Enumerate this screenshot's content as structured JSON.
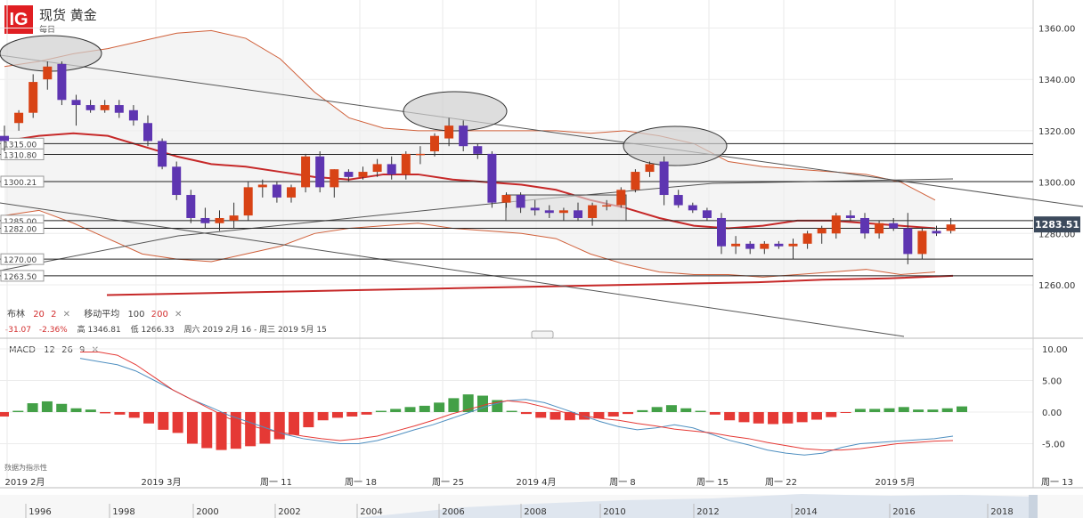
{
  "header": {
    "logo": "IG",
    "title": "现货 黄金",
    "period": "每日"
  },
  "indicators": {
    "boll_label": "布林",
    "boll_p1": "20",
    "boll_p2": "2",
    "ma_label": "移动平均",
    "ma_p1": "100",
    "ma_p2": "200",
    "close_icon": "close-icon"
  },
  "stats": {
    "change": "-31.07",
    "change_pct": "-2.36%",
    "high": "高 1346.81",
    "low": "低 1266.33",
    "range": "周六 2019 2月 16 - 周三 2019 5月 15"
  },
  "macd": {
    "label": "MACD",
    "p1": "12",
    "p2": "26",
    "p3": "9"
  },
  "footer_note": "数据为指示性",
  "colors": {
    "up": "#d84315",
    "down": "#5e35b1",
    "hist_up": "#43a047",
    "hist_down": "#e53935",
    "ma": "#c62828",
    "boll": "#d0603a",
    "macd": "#e53935",
    "signal": "#4f8fc0"
  },
  "chart_data": [
    {
      "type": "candlestick",
      "title": "现货 黄金",
      "ylim": [
        1250,
        1366
      ],
      "yticks": [
        "1360.00",
        "1340.00",
        "1320.00",
        "1300.00",
        "1280.00",
        "1260.00"
      ],
      "xticks": [
        "2019 2月",
        "2019 3月",
        "周一 11",
        "周一 18",
        "周一 25",
        "2019 4月",
        "周一 8",
        "周一 15",
        "周一 22",
        "2019 5月",
        "周一 13"
      ],
      "current_price": "1283.51",
      "levels": [
        {
          "label": "1315.00",
          "value": 1315.0
        },
        {
          "label": "1310.80",
          "value": 1310.8
        },
        {
          "label": "1300.21",
          "value": 1300.21
        },
        {
          "label": "1285.00",
          "value": 1285.0
        },
        {
          "label": "1282.00",
          "value": 1282.0
        },
        {
          "label": "1270.00",
          "value": 1270.0
        },
        {
          "label": "1263.50",
          "value": 1263.5
        }
      ],
      "candles": [
        [
          1318,
          1322,
          1312,
          1316
        ],
        [
          1323,
          1328,
          1320,
          1327
        ],
        [
          1327,
          1342,
          1325,
          1339
        ],
        [
          1340,
          1347,
          1336,
          1345
        ],
        [
          1346,
          1347,
          1330,
          1332
        ],
        [
          1332,
          1334,
          1322,
          1330
        ],
        [
          1330,
          1332,
          1327,
          1328
        ],
        [
          1328,
          1332,
          1327,
          1330
        ],
        [
          1330,
          1332,
          1325,
          1327
        ],
        [
          1328,
          1330,
          1322,
          1324
        ],
        [
          1323,
          1326,
          1314,
          1316
        ],
        [
          1316,
          1317,
          1305,
          1306
        ],
        [
          1306,
          1308,
          1293,
          1295
        ],
        [
          1295,
          1297,
          1284,
          1286
        ],
        [
          1286,
          1290,
          1282,
          1284
        ],
        [
          1284,
          1289,
          1281,
          1286
        ],
        [
          1285,
          1292,
          1282,
          1287
        ],
        [
          1287,
          1300,
          1285,
          1298
        ],
        [
          1298,
          1301,
          1294,
          1299
        ],
        [
          1299,
          1300,
          1292,
          1294
        ],
        [
          1294,
          1299,
          1292,
          1298
        ],
        [
          1298,
          1311,
          1296,
          1310
        ],
        [
          1310,
          1312,
          1296,
          1298
        ],
        [
          1298,
          1305,
          1294,
          1305
        ],
        [
          1304,
          1305,
          1300,
          1302
        ],
        [
          1302,
          1306,
          1301,
          1304
        ],
        [
          1304,
          1309,
          1302,
          1307
        ],
        [
          1307,
          1310,
          1301,
          1303
        ],
        [
          1303,
          1312,
          1301,
          1311
        ],
        [
          1311,
          1314,
          1307,
          1311
        ],
        [
          1312,
          1319,
          1310,
          1318
        ],
        [
          1317,
          1325,
          1314,
          1322
        ],
        [
          1322,
          1324,
          1312,
          1314
        ],
        [
          1314,
          1315,
          1309,
          1311
        ],
        [
          1311,
          1312,
          1290,
          1292
        ],
        [
          1292,
          1296,
          1290,
          1295
        ],
        [
          1295,
          1296,
          1288,
          1290
        ],
        [
          1290,
          1293,
          1287,
          1289
        ],
        [
          1289,
          1291,
          1286,
          1288
        ],
        [
          1288,
          1290,
          1285,
          1289
        ],
        [
          1289,
          1292,
          1285,
          1286
        ],
        [
          1286,
          1292,
          1283,
          1291
        ],
        [
          1291,
          1293,
          1289,
          1291
        ],
        [
          1291,
          1298,
          1290,
          1297
        ],
        [
          1297,
          1305,
          1296,
          1304
        ],
        [
          1304,
          1308,
          1302,
          1307
        ],
        [
          1308,
          1310,
          1291,
          1295
        ],
        [
          1295,
          1297,
          1290,
          1291
        ],
        [
          1291,
          1292,
          1288,
          1289
        ],
        [
          1289,
          1290,
          1285,
          1286
        ],
        [
          1286,
          1288,
          1272,
          1275
        ],
        [
          1275,
          1279,
          1272,
          1276
        ],
        [
          1276,
          1277,
          1272,
          1274
        ],
        [
          1274,
          1277,
          1272,
          1276
        ],
        [
          1276,
          1277,
          1274,
          1275
        ],
        [
          1275,
          1278,
          1270,
          1276
        ],
        [
          1276,
          1281,
          1274,
          1280
        ],
        [
          1280,
          1283,
          1276,
          1282
        ],
        [
          1280,
          1288,
          1278,
          1287
        ],
        [
          1287,
          1289,
          1285,
          1286
        ],
        [
          1286,
          1288,
          1278,
          1280
        ],
        [
          1280,
          1285,
          1278,
          1284
        ],
        [
          1284,
          1286,
          1281,
          1282
        ],
        [
          1282,
          1288,
          1268,
          1272
        ],
        [
          1272,
          1282,
          1270,
          1281
        ],
        [
          1281,
          1283,
          1279,
          1280
        ],
        [
          1281,
          1286,
          1280,
          1283.5
        ]
      ],
      "ma": [
        1256,
        1256.5,
        1257,
        1257.5,
        1258,
        1258.5,
        1259,
        1259.5,
        1260,
        1260.5,
        1261,
        1262,
        1262.5,
        1263.5
      ],
      "boll_upper": [
        1345,
        1347,
        1350,
        1352,
        1355,
        1358,
        1359,
        1356,
        1348,
        1335,
        1325,
        1321,
        1320,
        1320,
        1320,
        1320,
        1320,
        1319,
        1320,
        1318,
        1315,
        1308,
        1306,
        1305,
        1304,
        1303,
        1300,
        1293
      ],
      "boll_mid": [
        1316,
        1318,
        1319,
        1318,
        1314,
        1310,
        1307,
        1306,
        1304,
        1302,
        1301,
        1303,
        1303,
        1301,
        1300,
        1299,
        1297,
        1293,
        1290,
        1286,
        1283,
        1282,
        1283,
        1285,
        1285,
        1284,
        1283,
        1282
      ],
      "boll_lower": [
        1287,
        1289,
        1284,
        1278,
        1272,
        1270,
        1269,
        1272,
        1275,
        1280,
        1282,
        1283,
        1284,
        1282,
        1281,
        1280,
        1278,
        1272,
        1268,
        1265,
        1264,
        1264,
        1263,
        1264,
        1265,
        1266,
        1264,
        1265
      ]
    },
    {
      "type": "bar",
      "title": "MACD",
      "ylim": [
        -8,
        11
      ],
      "yticks": [
        "10.00",
        "5.00",
        "0.00",
        "-5.00"
      ],
      "hist": [
        -0.7,
        0.2,
        1.4,
        1.7,
        1.3,
        0.6,
        0.4,
        -0.2,
        -0.4,
        -0.9,
        -1.8,
        -2.8,
        -3.3,
        -5.0,
        -5.7,
        -6.0,
        -5.8,
        -5.4,
        -5.0,
        -4.3,
        -3.6,
        -2.4,
        -1.3,
        -0.9,
        -0.7,
        -0.4,
        0.2,
        0.5,
        0.8,
        1.0,
        1.5,
        2.2,
        2.8,
        2.6,
        1.9,
        0.2,
        -0.3,
        -0.9,
        -1.2,
        -1.3,
        -1.2,
        -1.0,
        -0.7,
        -0.3,
        0.3,
        0.8,
        1.1,
        0.6,
        0.2,
        -0.4,
        -1.3,
        -1.6,
        -1.8,
        -1.9,
        -1.8,
        -1.6,
        -1.2,
        -0.8,
        -0.1,
        0.5,
        0.5,
        0.6,
        0.8,
        0.4,
        0.4,
        0.6,
        0.9
      ],
      "macd_line": [
        8.5,
        8.0,
        7.5,
        6.5,
        5.0,
        3.5,
        2.0,
        0.8,
        -0.5,
        -1.5,
        -2.5,
        -3.5,
        -4.2,
        -4.6,
        -5.0,
        -5.0,
        -4.5,
        -3.7,
        -2.8,
        -2.0,
        -1.0,
        0.0,
        1.0,
        1.8,
        2.0,
        1.5,
        0.5,
        -0.5,
        -1.5,
        -2.3,
        -2.8,
        -2.5,
        -2.0,
        -2.5,
        -3.5,
        -4.5,
        -5.2,
        -6.0,
        -6.5,
        -6.8,
        -6.5,
        -5.6,
        -5.0,
        -4.8,
        -4.6,
        -4.4,
        -4.2,
        -3.8
      ],
      "signal_line": [
        9.5,
        9.5,
        9.0,
        7.5,
        5.5,
        3.5,
        2.0,
        0.5,
        -1.0,
        -2.0,
        -2.8,
        -3.3,
        -3.8,
        -4.2,
        -4.5,
        -4.2,
        -3.8,
        -3.0,
        -2.2,
        -1.3,
        -0.3,
        0.5,
        1.3,
        1.8,
        1.5,
        0.8,
        0.0,
        -0.5,
        -1.0,
        -1.3,
        -1.8,
        -2.2,
        -2.7,
        -3.0,
        -3.3,
        -3.8,
        -4.2,
        -4.8,
        -5.3,
        -5.8,
        -6.0,
        -6.0,
        -5.8,
        -5.4,
        -5.0,
        -4.8,
        -4.6,
        -4.5
      ]
    }
  ],
  "navigator": {
    "years": [
      "1996",
      "1998",
      "2000",
      "2002",
      "2004",
      "2006",
      "2008",
      "2010",
      "2012",
      "2014",
      "2016",
      "2018"
    ]
  }
}
